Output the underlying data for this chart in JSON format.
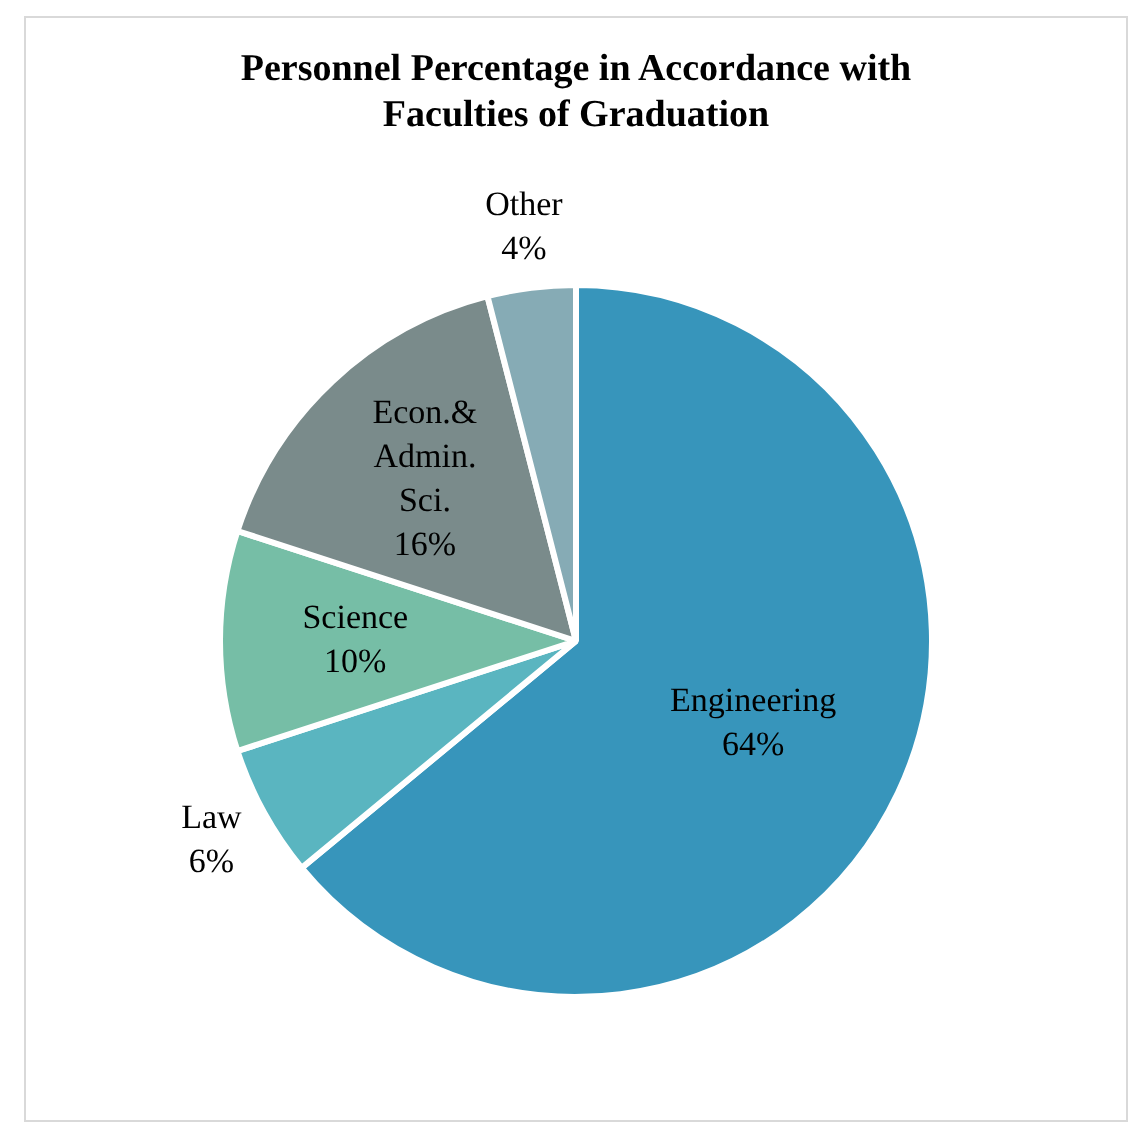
{
  "chart_data": {
    "type": "pie",
    "title": "Personnel Percentage in Accordance with Faculties of Graduation",
    "categories": [
      "Engineering",
      "Law",
      "Science",
      "Econ.& Admin. Sci.",
      "Other"
    ],
    "values": [
      64,
      6,
      10,
      16,
      4
    ],
    "colors": [
      "#3795bb",
      "#5ab5c0",
      "#76bea6",
      "#7a8b8b",
      "#86abb5"
    ],
    "value_labels": [
      "64%",
      "6%",
      "10%",
      "16%",
      "4%"
    ],
    "legend": false
  }
}
